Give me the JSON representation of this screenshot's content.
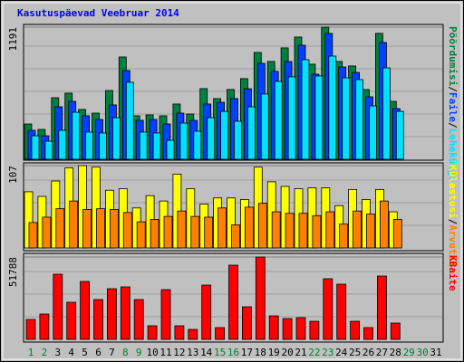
{
  "title": "Kasutuspäevad Veebruar 2014",
  "legend_separator": "/",
  "chart_data": [
    {
      "type": "bar",
      "ylim": [
        0,
        1191
      ],
      "yticks": [
        1191
      ],
      "series": [
        {
          "name": "Pöördumisi",
          "color": "#008040",
          "values": [
            318,
            269,
            555,
            596,
            449,
            416,
            620,
            922,
            392,
            400,
            392,
            498,
            408,
            637,
            547,
            629,
            727,
            963,
            882,
            1004,
            1102,
            857,
            1191,
            882,
            841,
            629,
            1135,
            522,
            null,
            null,
            null
          ]
        },
        {
          "name": "Faile",
          "color": "#0040ff",
          "values": [
            261,
            212,
            473,
            522,
            392,
            359,
            490,
            800,
            351,
            359,
            318,
            416,
            351,
            498,
            514,
            547,
            636,
            865,
            792,
            881,
            1028,
            767,
            1134,
            832,
            783,
            563,
            1053,
            457,
            null,
            null,
            null
          ]
        },
        {
          "name": "Lehekülgi",
          "color": "#00e0ff",
          "values": [
            212,
            163,
            261,
            424,
            245,
            237,
            375,
            694,
            245,
            237,
            171,
            326,
            253,
            375,
            432,
            343,
            473,
            588,
            702,
            743,
            898,
            751,
            930,
            734,
            718,
            481,
            824,
            432,
            null,
            null,
            null
          ]
        }
      ]
    },
    {
      "type": "bar",
      "ylim": [
        0,
        107
      ],
      "yticks": [
        107
      ],
      "series": [
        {
          "name": "Külastusi",
          "color": "#ffff00",
          "values": [
            73,
            67,
            87,
            104,
            107,
            105,
            75,
            77,
            52,
            68,
            61,
            96,
            77,
            57,
            65,
            65,
            63,
            105,
            86,
            80,
            77,
            78,
            78,
            55,
            76,
            63,
            76,
            47,
            null,
            null,
            null
          ]
        },
        {
          "name": "Arvutid",
          "color": "#ff8000",
          "values": [
            33,
            40,
            51,
            61,
            50,
            51,
            50,
            46,
            34,
            37,
            41,
            48,
            41,
            40,
            52,
            30,
            53,
            58,
            47,
            45,
            45,
            42,
            47,
            31,
            48,
            44,
            61,
            37,
            null,
            null,
            null
          ]
        }
      ]
    },
    {
      "type": "bar",
      "ylim": [
        0,
        51788
      ],
      "yticks": [
        51788
      ],
      "categories": [
        "1",
        "2",
        "3",
        "4",
        "5",
        "6",
        "7",
        "8",
        "9",
        "10",
        "11",
        "12",
        "13",
        "14",
        "15",
        "16",
        "17",
        "18",
        "19",
        "20",
        "21",
        "22",
        "23",
        "24",
        "25",
        "26",
        "27",
        "28",
        "29",
        "30",
        "31"
      ],
      "category_colors": [
        "#008040",
        "#008040",
        "#000000",
        "#000000",
        "#000000",
        "#000000",
        "#000000",
        "#008040",
        "#008040",
        "#000000",
        "#000000",
        "#000000",
        "#000000",
        "#000000",
        "#008040",
        "#008040",
        "#000000",
        "#000000",
        "#000000",
        "#000000",
        "#000000",
        "#008040",
        "#008040",
        "#000000",
        "#000000",
        "#000000",
        "#000000",
        "#000000",
        "#008040",
        "#008040",
        "#000000"
      ],
      "series": [
        {
          "name": "KBaite",
          "color": "#ff0000",
          "values": [
            12518,
            15932,
            40968,
            23329,
            36416,
            25036,
            31864,
            33002,
            25036,
            8535,
            31295,
            8535,
            6259,
            34140,
            7397,
            46658,
            20484,
            51788,
            14794,
            13087,
            13656,
            11380,
            38123,
            34709,
            11380,
            7397,
            39830,
            10242,
            null,
            null,
            null
          ]
        }
      ]
    }
  ]
}
